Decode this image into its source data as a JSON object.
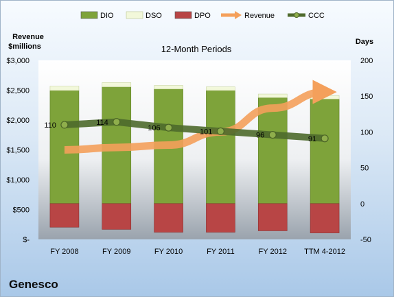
{
  "company": "Genesco",
  "chart_data": {
    "type": "bar",
    "title": "12-Month Periods",
    "ylabel_left": [
      "Revenue",
      "$millions"
    ],
    "ylabel_right": "Days",
    "categories": [
      "FY 2008",
      "FY 2009",
      "FY 2010",
      "FY 2011",
      "FY 2012",
      "TTM 4-2012"
    ],
    "left_axis": {
      "min": 0,
      "max": 3000,
      "step": 500,
      "tick_labels": [
        "$-",
        "$500",
        "$1,000",
        "$1,500",
        "$2,000",
        "$2,500",
        "$3,000"
      ]
    },
    "right_axis": {
      "min": -50,
      "max": 200,
      "step": 50,
      "tick_labels": [
        "-50",
        "0",
        "50",
        "100",
        "150",
        "200"
      ]
    },
    "stacked_day_series": [
      {
        "name": "DIO",
        "color": "#7ea33a",
        "values": [
          158,
          163,
          160,
          158,
          148,
          146
        ]
      },
      {
        "name": "DSO",
        "color": "#f2f8da",
        "values": [
          6,
          6,
          5,
          5,
          5,
          5
        ]
      },
      {
        "name": "DPO",
        "color": "#b84545",
        "values": [
          33,
          36,
          40,
          40,
          38,
          41
        ]
      }
    ],
    "ccc": {
      "name": "CCC",
      "color": "#4e6a2c",
      "values": [
        110,
        114,
        106,
        101,
        96,
        91
      ]
    },
    "revenue": {
      "name": "Revenue",
      "color": "#f4a05b",
      "values": [
        1500,
        1540,
        1580,
        1800,
        2200,
        2470
      ]
    },
    "legend_position": "top",
    "grid": false
  }
}
